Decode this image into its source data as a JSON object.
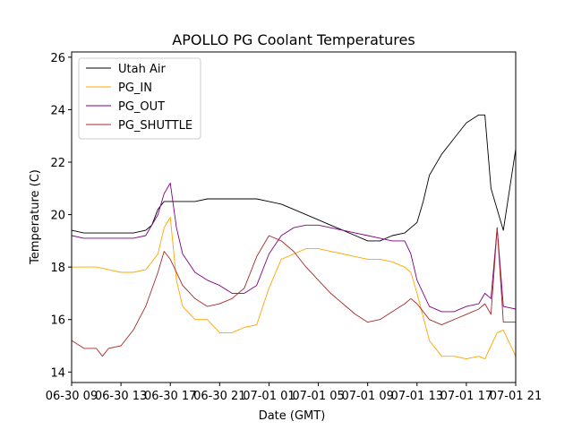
{
  "chart_data": {
    "type": "line",
    "title": "APOLLO PG Coolant Temperatures",
    "xlabel": "Date (GMT)",
    "ylabel": "Temperature (C)",
    "ylim": [
      13.6,
      26.2
    ],
    "xlim": [
      0,
      36
    ],
    "yticks": [
      14,
      16,
      18,
      20,
      22,
      24,
      26
    ],
    "xticks": [
      {
        "pos": 0,
        "label": "06-30 09"
      },
      {
        "pos": 4,
        "label": "06-30 13"
      },
      {
        "pos": 8,
        "label": "06-30 17"
      },
      {
        "pos": 12,
        "label": "06-30 21"
      },
      {
        "pos": 16,
        "label": "07-01 01"
      },
      {
        "pos": 20,
        "label": "07-01 05"
      },
      {
        "pos": 24,
        "label": "07-01 09"
      },
      {
        "pos": 28,
        "label": "07-01 13"
      },
      {
        "pos": 32,
        "label": "07-01 17"
      },
      {
        "pos": 36,
        "label": "07-01 21"
      }
    ],
    "legend_location": "top-left",
    "series": [
      {
        "name": "Utah Air",
        "color": "#000000",
        "x": [
          0,
          1,
          2,
          3,
          4,
          5,
          6,
          6.5,
          7,
          7.5,
          8,
          9,
          10,
          11,
          12,
          13,
          14,
          15,
          16,
          17,
          18,
          19,
          20,
          21,
          22,
          23,
          24,
          25,
          26,
          27,
          27.5,
          28,
          28.5,
          29,
          30,
          31,
          32,
          33,
          33.5,
          34,
          35,
          36
        ],
        "y": [
          19.4,
          19.3,
          19.3,
          19.3,
          19.3,
          19.3,
          19.4,
          19.6,
          20.2,
          20.5,
          20.5,
          20.5,
          20.5,
          20.6,
          20.6,
          20.6,
          20.6,
          20.6,
          20.5,
          20.4,
          20.2,
          20.0,
          19.8,
          19.6,
          19.4,
          19.2,
          19.0,
          19.0,
          19.2,
          19.3,
          19.5,
          19.7,
          20.5,
          21.5,
          22.3,
          22.9,
          23.5,
          23.8,
          23.8,
          21.0,
          19.4,
          22.5
        ]
      },
      {
        "name": "PG_IN",
        "color": "#ffa500",
        "x": [
          0,
          1,
          2,
          3,
          4,
          5,
          6,
          7,
          7.5,
          8,
          8.5,
          9,
          10,
          11,
          12,
          13,
          14,
          15,
          16,
          17,
          18,
          19,
          20,
          21,
          22,
          23,
          24,
          25,
          26,
          26.5,
          27,
          27.5,
          28,
          29,
          30,
          31,
          32,
          33,
          33.5,
          34,
          34.5,
          35,
          36
        ],
        "y": [
          18.0,
          18.0,
          18.0,
          17.9,
          17.8,
          17.8,
          17.9,
          18.5,
          19.5,
          19.9,
          17.5,
          16.5,
          16.0,
          16.0,
          15.5,
          15.5,
          15.7,
          15.8,
          17.2,
          18.3,
          18.5,
          18.7,
          18.7,
          18.6,
          18.5,
          18.4,
          18.3,
          18.3,
          18.2,
          18.1,
          18.0,
          17.8,
          17.0,
          15.2,
          14.6,
          14.6,
          14.5,
          14.6,
          14.5,
          15.0,
          15.5,
          15.6,
          14.6
        ]
      },
      {
        "name": "PG_OUT",
        "color": "#800080",
        "x": [
          0,
          1,
          2,
          3,
          4,
          5,
          6,
          7,
          7.5,
          8,
          8.5,
          9,
          10,
          11,
          12,
          13,
          14,
          15,
          16,
          17,
          18,
          19,
          20,
          21,
          22,
          23,
          24,
          25,
          26,
          26.5,
          27,
          27.5,
          28,
          29,
          30,
          31,
          32,
          33,
          33.5,
          34,
          34.5,
          35,
          36
        ],
        "y": [
          19.2,
          19.1,
          19.1,
          19.1,
          19.1,
          19.1,
          19.2,
          20.0,
          20.8,
          21.2,
          19.5,
          18.5,
          17.8,
          17.5,
          17.3,
          17.0,
          17.0,
          17.3,
          18.5,
          19.2,
          19.5,
          19.6,
          19.6,
          19.5,
          19.4,
          19.3,
          19.2,
          19.1,
          19.0,
          19.0,
          19.0,
          18.5,
          17.5,
          16.5,
          16.3,
          16.3,
          16.5,
          16.6,
          17.0,
          16.8,
          19.5,
          16.5,
          16.4
        ]
      },
      {
        "name": "PG_SHUTTLE",
        "color": "#a52a2a",
        "x": [
          0,
          1,
          2,
          2.5,
          3,
          4,
          5,
          6,
          7,
          7.5,
          8,
          9,
          10,
          11,
          12,
          13,
          14,
          15,
          16,
          17,
          18,
          19,
          20,
          21,
          22,
          23,
          24,
          25,
          26,
          27,
          27.5,
          28,
          29,
          30,
          31,
          32,
          33,
          33.5,
          34,
          34.5,
          35,
          36
        ],
        "y": [
          15.2,
          14.9,
          14.9,
          14.6,
          14.9,
          15.0,
          15.6,
          16.5,
          17.8,
          18.6,
          18.3,
          17.3,
          16.8,
          16.5,
          16.6,
          16.8,
          17.2,
          18.4,
          19.2,
          19.0,
          18.6,
          18.0,
          17.5,
          17.0,
          16.6,
          16.2,
          15.9,
          16.0,
          16.3,
          16.6,
          16.8,
          16.6,
          16.0,
          15.8,
          16.0,
          16.2,
          16.4,
          16.6,
          16.2,
          19.5,
          15.9,
          15.9
        ]
      }
    ]
  }
}
